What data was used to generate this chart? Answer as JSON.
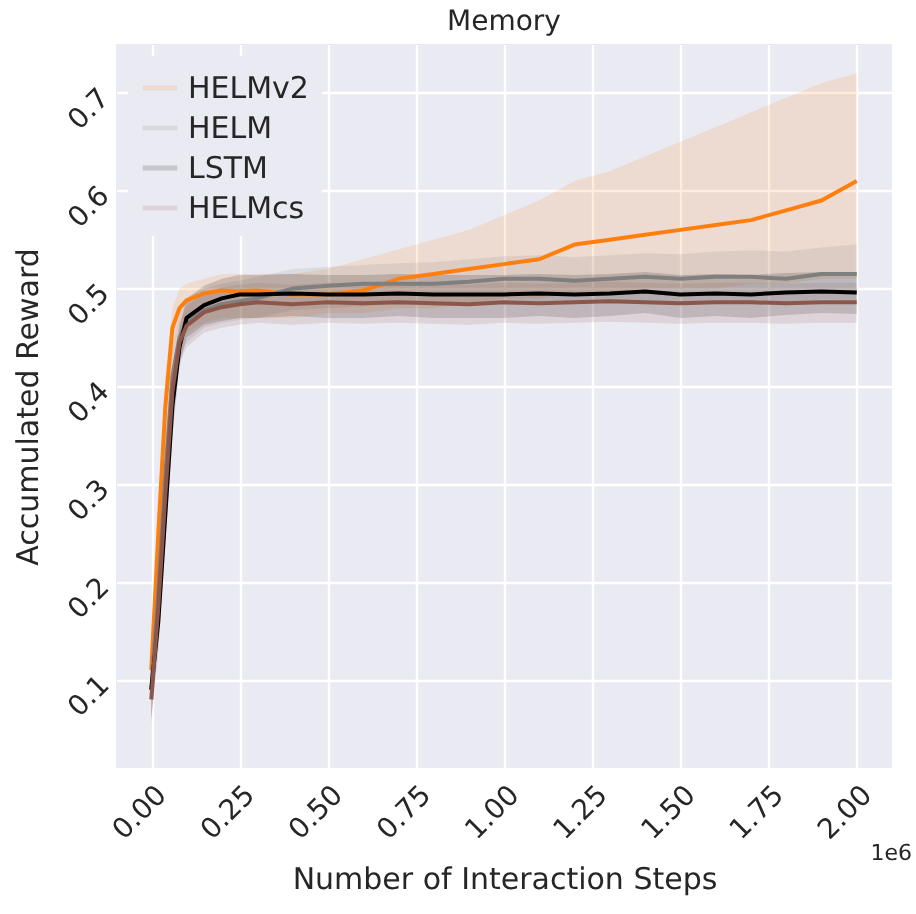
{
  "chart_data": {
    "type": "line",
    "title": "Memory",
    "xlabel": "Number of Interaction Steps",
    "ylabel": "Accumulated Reward",
    "x": [
      0,
      0.02,
      0.04,
      0.06,
      0.08,
      0.1,
      0.15,
      0.2,
      0.25,
      0.3,
      0.4,
      0.5,
      0.6,
      0.7,
      0.8,
      0.9,
      1.0,
      1.1,
      1.2,
      1.3,
      1.4,
      1.5,
      1.6,
      1.7,
      1.8,
      1.9,
      2.0
    ],
    "series": [
      {
        "name": "HELMv2",
        "color": "#ff7f0e",
        "values": [
          0.11,
          0.25,
          0.38,
          0.46,
          0.48,
          0.488,
          0.495,
          0.498,
          0.497,
          0.498,
          0.494,
          0.494,
          0.498,
          0.51,
          0.515,
          0.52,
          0.525,
          0.53,
          0.545,
          0.55,
          0.555,
          0.56,
          0.565,
          0.57,
          0.58,
          0.59,
          0.61
        ],
        "lower": [
          0.06,
          0.16,
          0.29,
          0.4,
          0.44,
          0.455,
          0.465,
          0.47,
          0.47,
          0.47,
          0.47,
          0.475,
          0.475,
          0.48,
          0.48,
          0.485,
          0.49,
          0.49,
          0.495,
          0.495,
          0.5,
          0.5,
          0.5,
          0.505,
          0.505,
          0.51,
          0.51
        ],
        "upper": [
          0.14,
          0.28,
          0.41,
          0.48,
          0.5,
          0.505,
          0.51,
          0.515,
          0.515,
          0.515,
          0.515,
          0.52,
          0.53,
          0.54,
          0.55,
          0.56,
          0.575,
          0.59,
          0.61,
          0.62,
          0.635,
          0.65,
          0.665,
          0.68,
          0.695,
          0.71,
          0.72
        ]
      },
      {
        "name": "HELM",
        "color": "#7f7f7f",
        "values": [
          0.09,
          0.19,
          0.31,
          0.41,
          0.45,
          0.465,
          0.478,
          0.484,
          0.487,
          0.49,
          0.5,
          0.503,
          0.505,
          0.505,
          0.505,
          0.507,
          0.51,
          0.51,
          0.508,
          0.51,
          0.512,
          0.51,
          0.512,
          0.512,
          0.51,
          0.515,
          0.515
        ],
        "lower": [
          0.05,
          0.16,
          0.28,
          0.39,
          0.43,
          0.445,
          0.46,
          0.465,
          0.468,
          0.47,
          0.478,
          0.48,
          0.482,
          0.484,
          0.484,
          0.485,
          0.487,
          0.487,
          0.485,
          0.487,
          0.488,
          0.486,
          0.487,
          0.487,
          0.485,
          0.489,
          0.488
        ],
        "upper": [
          0.12,
          0.23,
          0.35,
          0.44,
          0.475,
          0.49,
          0.5,
          0.505,
          0.508,
          0.512,
          0.52,
          0.522,
          0.524,
          0.526,
          0.527,
          0.53,
          0.533,
          0.534,
          0.532,
          0.534,
          0.536,
          0.535,
          0.538,
          0.539,
          0.538,
          0.542,
          0.545
        ]
      },
      {
        "name": "LSTM",
        "color": "#000000",
        "values": [
          0.09,
          0.16,
          0.27,
          0.38,
          0.44,
          0.47,
          0.483,
          0.49,
          0.494,
          0.494,
          0.495,
          0.494,
          0.494,
          0.495,
          0.494,
          0.494,
          0.494,
          0.495,
          0.494,
          0.495,
          0.497,
          0.494,
          0.495,
          0.494,
          0.496,
          0.497,
          0.496
        ],
        "lower": [
          0.06,
          0.13,
          0.24,
          0.35,
          0.42,
          0.45,
          0.463,
          0.467,
          0.47,
          0.47,
          0.472,
          0.47,
          0.47,
          0.472,
          0.47,
          0.47,
          0.47,
          0.472,
          0.47,
          0.472,
          0.475,
          0.47,
          0.472,
          0.47,
          0.473,
          0.475,
          0.474
        ],
        "upper": [
          0.12,
          0.19,
          0.3,
          0.41,
          0.46,
          0.49,
          0.503,
          0.51,
          0.514,
          0.514,
          0.515,
          0.514,
          0.514,
          0.515,
          0.514,
          0.514,
          0.514,
          0.515,
          0.514,
          0.515,
          0.517,
          0.514,
          0.515,
          0.514,
          0.516,
          0.517,
          0.516
        ]
      },
      {
        "name": "HELMcs",
        "color": "#8c564b",
        "values": [
          0.08,
          0.175,
          0.29,
          0.395,
          0.445,
          0.462,
          0.476,
          0.481,
          0.484,
          0.486,
          0.484,
          0.486,
          0.485,
          0.486,
          0.485,
          0.484,
          0.486,
          0.485,
          0.486,
          0.487,
          0.486,
          0.485,
          0.486,
          0.486,
          0.485,
          0.486,
          0.486
        ],
        "lower": [
          0.06,
          0.15,
          0.26,
          0.37,
          0.425,
          0.44,
          0.455,
          0.46,
          0.463,
          0.465,
          0.463,
          0.465,
          0.464,
          0.465,
          0.464,
          0.463,
          0.465,
          0.464,
          0.465,
          0.466,
          0.465,
          0.464,
          0.465,
          0.465,
          0.464,
          0.465,
          0.465
        ],
        "upper": [
          0.1,
          0.2,
          0.32,
          0.42,
          0.465,
          0.482,
          0.496,
          0.501,
          0.504,
          0.506,
          0.504,
          0.506,
          0.505,
          0.506,
          0.505,
          0.504,
          0.506,
          0.505,
          0.506,
          0.507,
          0.506,
          0.505,
          0.506,
          0.506,
          0.505,
          0.506,
          0.506
        ]
      }
    ],
    "xlim": [
      -0.1,
      2.1
    ],
    "xticks": [
      {
        "value": 0,
        "label": "0.00"
      },
      {
        "value": 0.25,
        "label": "0.25"
      },
      {
        "value": 0.5,
        "label": "0.50"
      },
      {
        "value": 0.75,
        "label": "0.75"
      },
      {
        "value": 1,
        "label": "1.00"
      },
      {
        "value": 1.25,
        "label": "1.25"
      },
      {
        "value": 1.5,
        "label": "1.50"
      },
      {
        "value": 1.75,
        "label": "1.75"
      },
      {
        "value": 2,
        "label": "2.00"
      }
    ],
    "ylim": [
      0.01,
      0.75
    ],
    "yticks": [
      0.1,
      0.2,
      0.3,
      0.4,
      0.5,
      0.6,
      0.7
    ],
    "annotations": [
      "1e6"
    ],
    "grid": true,
    "legend": "top left",
    "line_style": "solid"
  }
}
